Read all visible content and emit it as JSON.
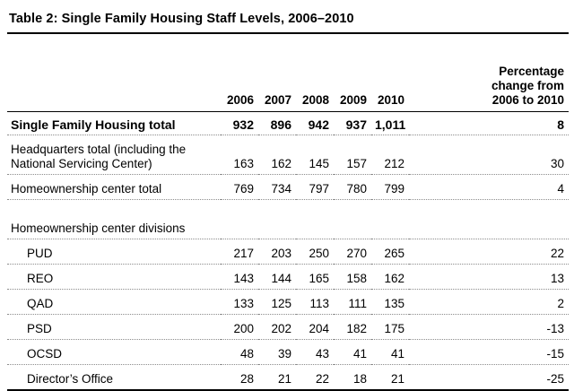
{
  "table": {
    "title": "Table 2: Single Family Housing Staff Levels, 2006–2010",
    "columns": [
      "2006",
      "2007",
      "2008",
      "2009",
      "2010"
    ],
    "pct_header": [
      "Percentage",
      "change from",
      "2006 to 2010"
    ],
    "rows": [
      {
        "label": "Single Family Housing total",
        "values": [
          "932",
          "896",
          "942",
          "937",
          "1,011"
        ],
        "pct": "8"
      },
      {
        "label": "Headquarters total (including the National Servicing Center)",
        "values": [
          "163",
          "162",
          "145",
          "157",
          "212"
        ],
        "pct": "30"
      },
      {
        "label": "Homeownership center total",
        "values": [
          "769",
          "734",
          "797",
          "780",
          "799"
        ],
        "pct": "4"
      },
      {
        "label": "Homeownership center divisions",
        "values": [
          "",
          "",
          "",
          "",
          ""
        ],
        "pct": ""
      },
      {
        "label": "PUD",
        "values": [
          "217",
          "203",
          "250",
          "270",
          "265"
        ],
        "pct": "22"
      },
      {
        "label": "REO",
        "values": [
          "143",
          "144",
          "165",
          "158",
          "162"
        ],
        "pct": "13"
      },
      {
        "label": "QAD",
        "values": [
          "133",
          "125",
          "113",
          "111",
          "135"
        ],
        "pct": "2"
      },
      {
        "label": "PSD",
        "values": [
          "200",
          "202",
          "204",
          "182",
          "175"
        ],
        "pct": "-13"
      },
      {
        "label": "OCSD",
        "values": [
          "48",
          "39",
          "43",
          "41",
          "41"
        ],
        "pct": "-15"
      },
      {
        "label": "Director’s Office",
        "values": [
          "28",
          "21",
          "22",
          "18",
          "21"
        ],
        "pct": "-25"
      }
    ]
  }
}
